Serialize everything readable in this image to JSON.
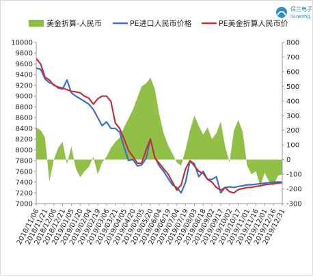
{
  "brand": {
    "name_cn": "保兰电子",
    "name_en": "isuwang"
  },
  "chart_data": {
    "type": "line",
    "legend": [
      {
        "name": "美金折算-人民币",
        "color": "#8cbd3c",
        "kind": "area"
      },
      {
        "name": "PE进口人民币价格",
        "color": "#3b6fc4",
        "kind": "line"
      },
      {
        "name": "PE美金折算人民币价",
        "color": "#c0323a",
        "kind": "line"
      }
    ],
    "y_left": {
      "min": 7000,
      "max": 10000,
      "step": 100,
      "ticks": [
        7000,
        7200,
        7400,
        7600,
        7800,
        8000,
        8200,
        8400,
        8600,
        8800,
        9000,
        9200,
        9400,
        9600,
        9800,
        10000
      ]
    },
    "y_left_labels": [
      "7000",
      "7200",
      "7400",
      "7600",
      "7800",
      "8000",
      "8200",
      "8400",
      "8600",
      "8800",
      "9000",
      "9200",
      "9400",
      "9600",
      "9800",
      "10000"
    ],
    "y_right": {
      "min": -300,
      "max": 800,
      "ticks": [
        -300,
        -200,
        -100,
        0,
        100,
        200,
        300,
        400,
        500,
        600,
        700,
        800
      ]
    },
    "y_right_labels": [
      "-300",
      "-200",
      "-100",
      "0",
      "100",
      "200",
      "300",
      "400",
      "500",
      "600",
      "700",
      "800"
    ],
    "x_labels": [
      "2018/11/06",
      "2018/11/21",
      "2018/12/06",
      "2018/12/21",
      "2019/01/05",
      "2019/01/20",
      "2019/02/04",
      "2019/02/19",
      "2019/03/06",
      "2019/03/21",
      "2019/04/05",
      "2019/04/20",
      "2019/05/05",
      "2019/05/20",
      "2019/06/04",
      "2019/06/19",
      "2019/07/04",
      "2019/07/19",
      "2019/08/03",
      "2019/08/18",
      "2019/09/02",
      "2019/09/17",
      "2019/10/02",
      "2019/10/17",
      "2019/11/01",
      "2019/11/16",
      "2019/12/01",
      "2019/12/16",
      "2019/12/31"
    ],
    "diff_series": {
      "name": "美金折算-人民币",
      "x": [
        0,
        0.5,
        1,
        1.5,
        2,
        2.5,
        3,
        3.5,
        4,
        4.5,
        5,
        5.5,
        6,
        6.5,
        7,
        7.5,
        8,
        8.5,
        9,
        9.5,
        10,
        10.5,
        11,
        11.5,
        12,
        12.5,
        13,
        13.5,
        14,
        14.5,
        15,
        15.5,
        16,
        16.5,
        17,
        17.5,
        18,
        18.5,
        19,
        19.5,
        20,
        20.5,
        21,
        21.5,
        22,
        22.5,
        23,
        23.5,
        24,
        24.5,
        25,
        25.5,
        26,
        26.5,
        27,
        27.5,
        28
      ],
      "values": [
        220,
        200,
        150,
        -150,
        0,
        80,
        120,
        -30,
        90,
        -60,
        -120,
        -80,
        -50,
        20,
        -100,
        -20,
        20,
        80,
        120,
        150,
        220,
        280,
        340,
        420,
        500,
        520,
        560,
        480,
        310,
        180,
        100,
        40,
        -20,
        -40,
        70,
        200,
        300,
        230,
        170,
        220,
        140,
        180,
        260,
        90,
        -20,
        200,
        270,
        190,
        -40,
        -100,
        -80,
        -180,
        -90,
        -150,
        -180,
        -110,
        -100
      ],
      "ylim": [
        -300,
        800
      ]
    },
    "series": [
      {
        "name": "PE进口人民币价格",
        "x": [
          0,
          0.5,
          1,
          1.5,
          2,
          2.5,
          3,
          3.5,
          4,
          4.5,
          5,
          5.5,
          6,
          6.5,
          7,
          7.5,
          8,
          8.5,
          9,
          9.5,
          10,
          10.5,
          11,
          11.5,
          12,
          12.5,
          13,
          13.5,
          14,
          14.5,
          15,
          15.5,
          16,
          16.5,
          17,
          17.5,
          18,
          18.5,
          19,
          19.5,
          20,
          20.5,
          21,
          21.5,
          22,
          22.5,
          23,
          23.5,
          24,
          24.5,
          25,
          25.5,
          26,
          26.5,
          27,
          27.5,
          28
        ],
        "values": [
          9520,
          9500,
          9320,
          9250,
          9220,
          9150,
          9130,
          9300,
          9060,
          9000,
          8950,
          8900,
          8850,
          8750,
          8600,
          8450,
          8520,
          8400,
          8400,
          8330,
          8050,
          7800,
          7820,
          7700,
          7720,
          7840,
          8200,
          7860,
          7700,
          7600,
          7470,
          7350,
          7300,
          7200,
          7400,
          7800,
          7740,
          7500,
          7600,
          7450,
          7450,
          7500,
          7200,
          7300,
          7310,
          7300,
          7320,
          7330,
          7350,
          7350,
          7360,
          7370,
          7380,
          7390,
          7400,
          7400,
          7400
        ]
      },
      {
        "name": "PE美金折算人民币价",
        "x": [
          0,
          0.5,
          1,
          1.5,
          2,
          2.5,
          3,
          3.5,
          4,
          4.5,
          5,
          5.5,
          6,
          6.5,
          7,
          7.5,
          8,
          8.5,
          9,
          9.5,
          10,
          10.5,
          11,
          11.5,
          12,
          12.5,
          13,
          13.5,
          14,
          14.5,
          15,
          15.5,
          16,
          16.5,
          17,
          17.5,
          18,
          18.5,
          19,
          19.5,
          20,
          20.5,
          21,
          21.5,
          22,
          22.5,
          23,
          23.5,
          24,
          24.5,
          25,
          25.5,
          26,
          26.5,
          27,
          27.5,
          28
        ],
        "values": [
          9700,
          9600,
          9350,
          9300,
          9200,
          9170,
          9150,
          9120,
          9090,
          9080,
          9060,
          9000,
          8960,
          8850,
          8950,
          9000,
          9000,
          8900,
          8500,
          8400,
          8200,
          7990,
          7880,
          7750,
          7750,
          8000,
          8200,
          7850,
          7750,
          7650,
          7550,
          7400,
          7250,
          7350,
          7650,
          7800,
          7700,
          7600,
          7560,
          7450,
          7400,
          7300,
          7250,
          7300,
          7220,
          7200,
          7260,
          7280,
          7300,
          7300,
          7320,
          7330,
          7350,
          7360,
          7370,
          7380,
          7390
        ]
      }
    ]
  }
}
